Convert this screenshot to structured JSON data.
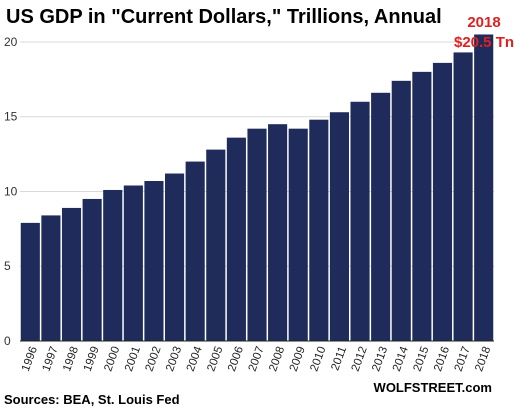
{
  "colors": {
    "bar": "#1f2b5a",
    "grid": "#d9d9d9",
    "annotation": "#e02020",
    "axis": "#222222"
  },
  "source_note": "Sources: BEA, St. Louis Fed",
  "brand": "WOLFSTREET.com",
  "annotation": {
    "line1": "2018",
    "line2": "$20.5 Tn"
  },
  "chart_data": {
    "type": "bar",
    "title": "US GDP in \"Current Dollars,\" Trillions, Annual",
    "xlabel": "",
    "ylabel": "",
    "categories": [
      "1996",
      "1997",
      "1998",
      "1999",
      "2000",
      "2001",
      "2002",
      "2003",
      "2004",
      "2005",
      "2006",
      "2007",
      "2008",
      "2009",
      "2010",
      "2011",
      "2012",
      "2013",
      "2014",
      "2015",
      "2016",
      "2017",
      "2018"
    ],
    "values": [
      7.9,
      8.4,
      8.9,
      9.5,
      10.1,
      10.4,
      10.7,
      11.2,
      12.0,
      12.8,
      13.6,
      14.2,
      14.5,
      14.2,
      14.8,
      15.3,
      16.0,
      16.6,
      17.4,
      18.0,
      18.6,
      19.3,
      20.5
    ],
    "ylim": [
      0,
      21
    ],
    "yticks": [
      0,
      5,
      10,
      15,
      20
    ],
    "grid": true
  }
}
